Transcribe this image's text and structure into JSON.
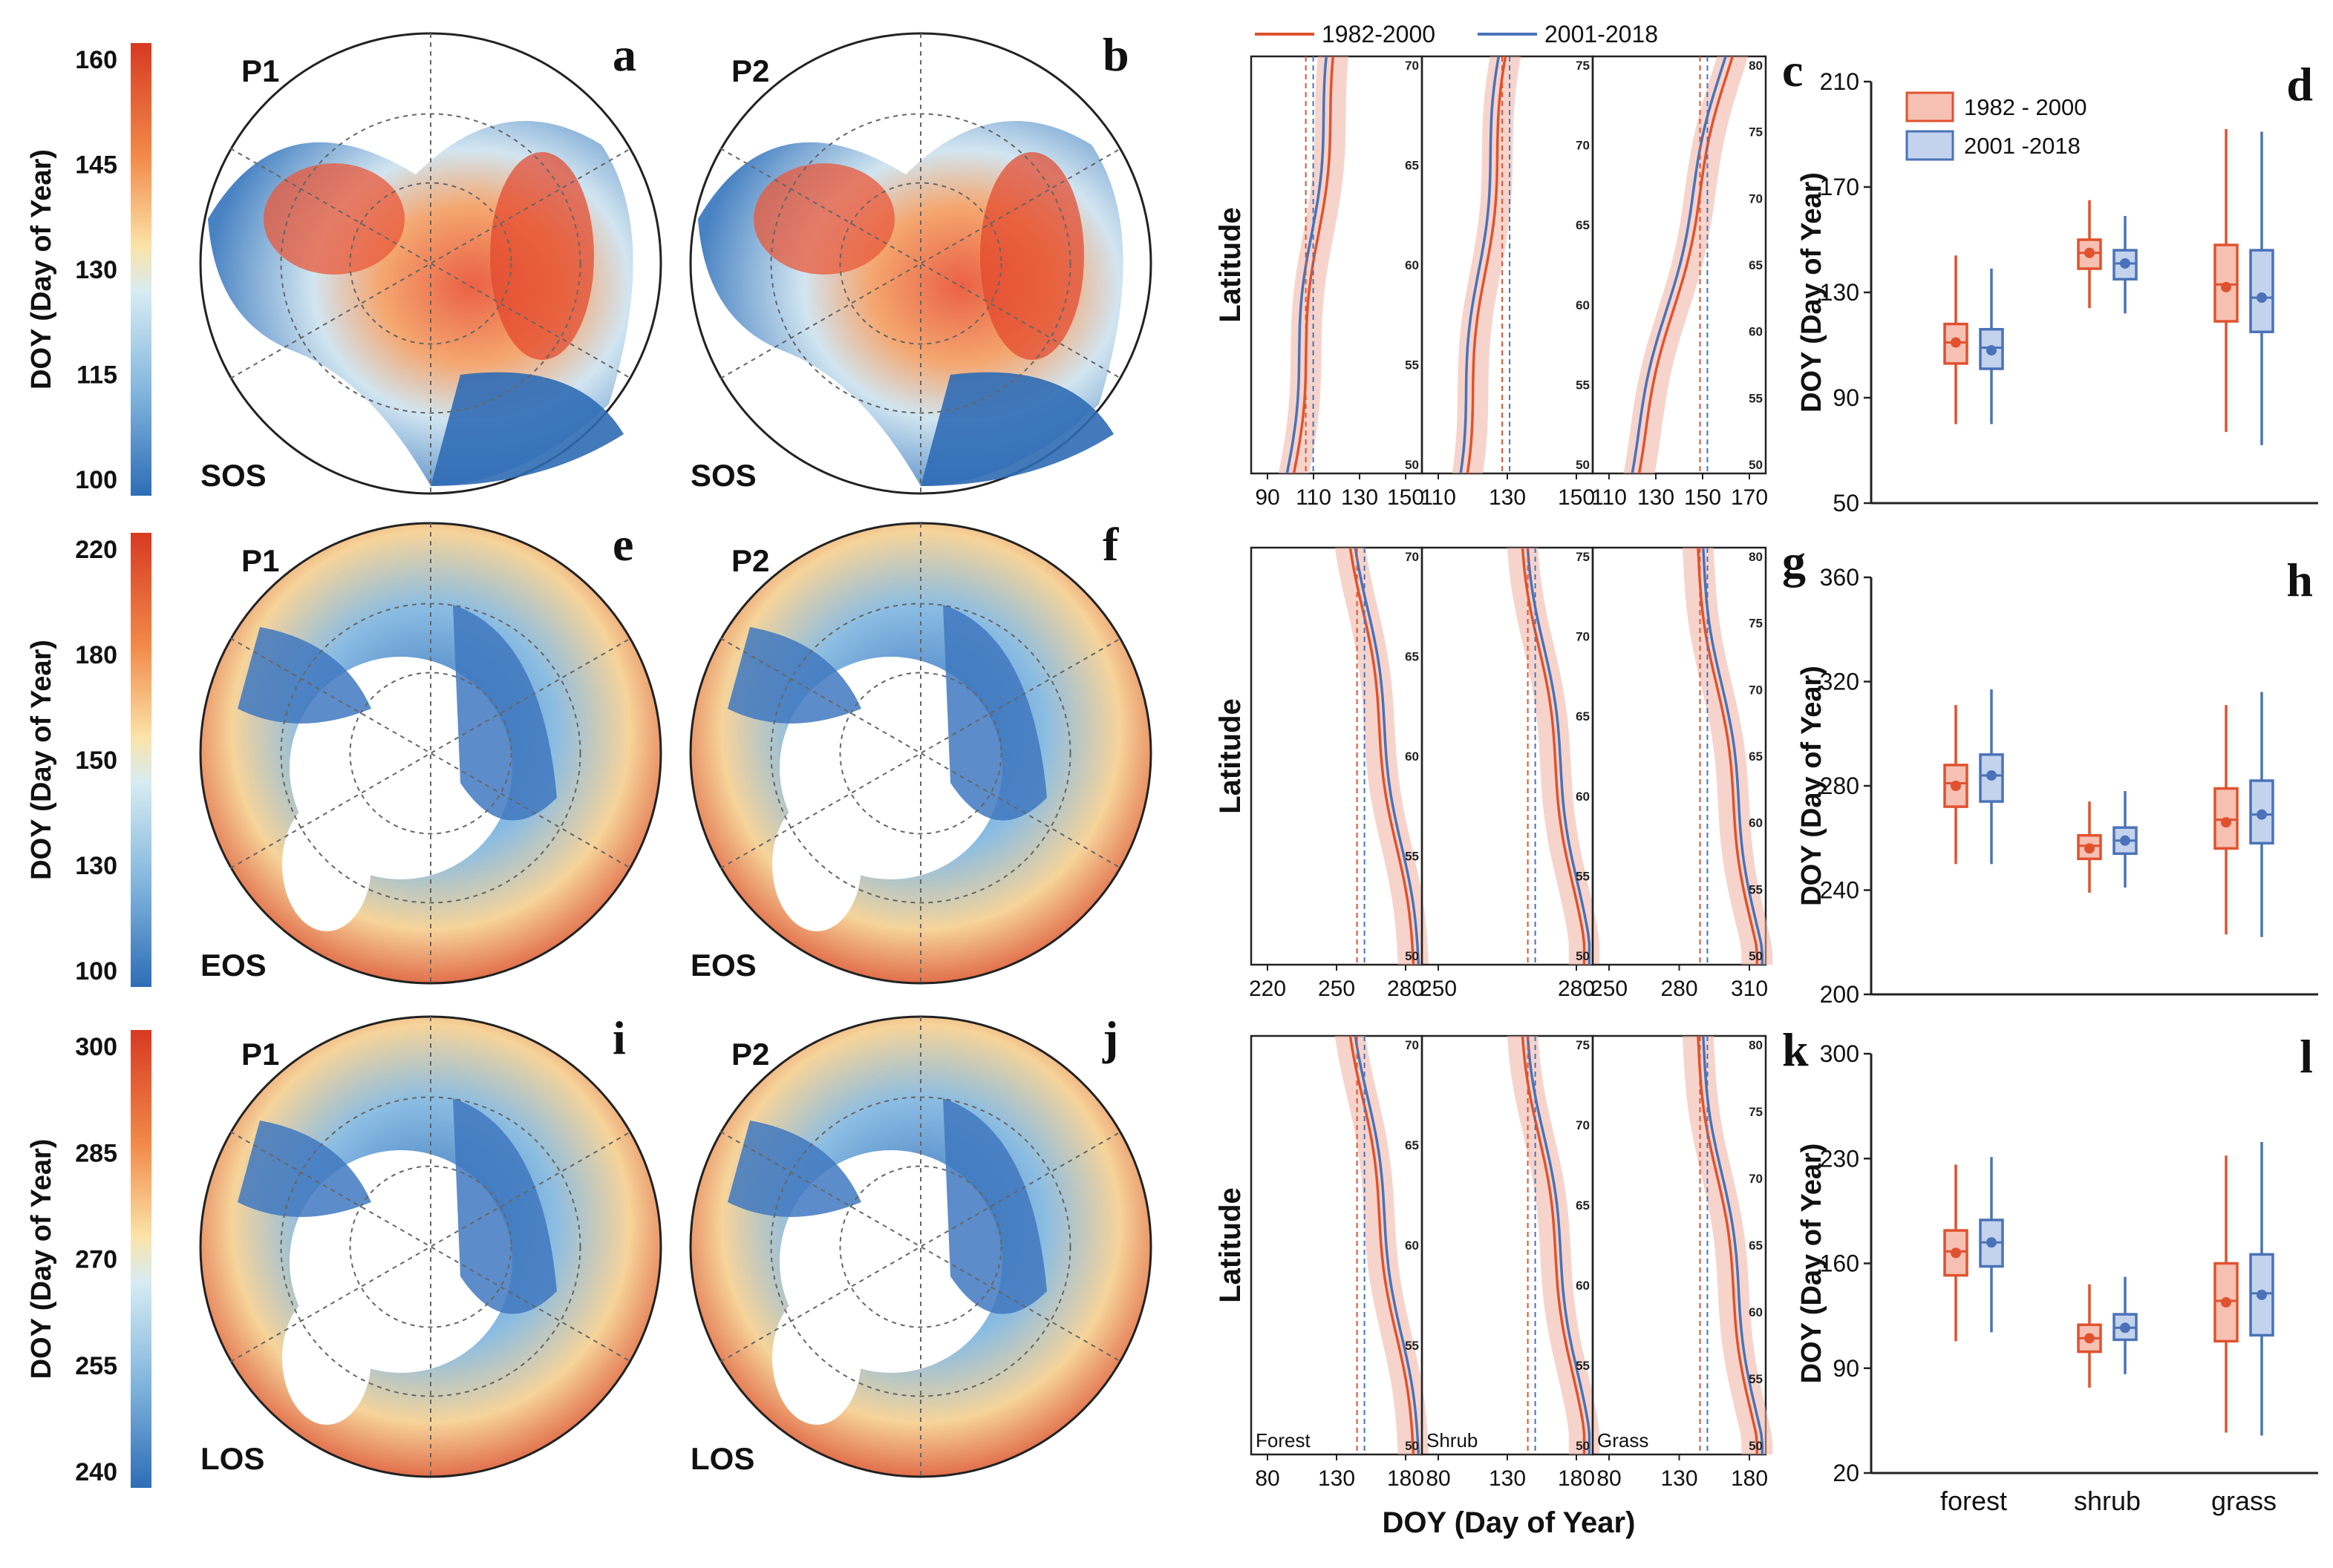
{
  "colorbars": [
    {
      "title": "DOY (Day of Year)",
      "ticks": [
        "160",
        "145",
        "130",
        "115",
        "100"
      ]
    },
    {
      "title": "DOY (Day of Year)",
      "ticks": [
        "220",
        "180",
        "150",
        "130",
        "100"
      ]
    },
    {
      "title": "DOY (Day of Year)",
      "ticks": [
        "300",
        "285",
        "270",
        "255",
        "240"
      ]
    }
  ],
  "maps": [
    {
      "period": "P1",
      "metric": "SOS",
      "letter": "a"
    },
    {
      "period": "P2",
      "metric": "SOS",
      "letter": "b"
    },
    {
      "period": "P1",
      "metric": "EOS",
      "letter": "e"
    },
    {
      "period": "P2",
      "metric": "EOS",
      "letter": "f"
    },
    {
      "period": "P1",
      "metric": "LOS",
      "letter": "i"
    },
    {
      "period": "P2",
      "metric": "LOS",
      "letter": "j"
    }
  ],
  "profile_legend": [
    {
      "label": "1982-2000",
      "color": "#e0522f"
    },
    {
      "label": "2001-2018",
      "color": "#4a72b8"
    }
  ],
  "profile_rows": [
    {
      "letter": "c",
      "ylabel": "Latitude",
      "xticks": [
        [
          "90",
          "110",
          "130",
          "150"
        ],
        [
          "110",
          "130",
          "150"
        ],
        [
          "110",
          "130",
          "150",
          "170"
        ]
      ],
      "latticks": [
        [
          "70",
          "65",
          "60",
          "55",
          "50"
        ],
        [
          "75",
          "70",
          "65",
          "60",
          "55",
          "50"
        ],
        [
          "80",
          "75",
          "70",
          "65",
          "60",
          "55",
          "50"
        ]
      ]
    },
    {
      "letter": "g",
      "ylabel": "Latitude",
      "xticks": [
        [
          "220",
          "250",
          "280"
        ],
        [
          "250",
          "280"
        ],
        [
          "250",
          "280",
          "310"
        ]
      ],
      "latticks": [
        [
          "70",
          "65",
          "60",
          "55",
          "50"
        ],
        [
          "75",
          "70",
          "65",
          "60",
          "55",
          "50"
        ],
        [
          "80",
          "75",
          "70",
          "65",
          "60",
          "55",
          "50"
        ]
      ]
    },
    {
      "letter": "k",
      "ylabel": "Latitude",
      "xticks": [
        [
          "80",
          "130",
          "180"
        ],
        [
          "80",
          "130",
          "180"
        ],
        [
          "80",
          "130",
          "180"
        ]
      ],
      "latticks": [
        [
          "70",
          "65",
          "60",
          "55",
          "50"
        ],
        [
          "75",
          "70",
          "65",
          "60",
          "55",
          "50"
        ],
        [
          "80",
          "75",
          "70",
          "65",
          "60",
          "55",
          "50"
        ]
      ],
      "panel_labels": [
        "Forest",
        "Shrub",
        "Grass"
      ]
    }
  ],
  "profile_xlabel": "DOY (Day of Year)",
  "box_legend": [
    {
      "label": "1982 - 2000",
      "color": "#e0522f",
      "fill": "#f6c0b3"
    },
    {
      "label": "2001 -2018",
      "color": "#4a72b8",
      "fill": "#c3d3ee"
    }
  ],
  "chart_data": [
    {
      "type": "box",
      "letter": "d",
      "ylabel": "DOY (Day of Year)",
      "ylim": [
        50,
        210
      ],
      "yticks": [
        "50",
        "90",
        "130",
        "170",
        "210"
      ],
      "categories": [
        "forest",
        "shrub",
        "grass"
      ],
      "series": [
        {
          "name": "1982 - 2000",
          "boxes": [
            {
              "whislo": 80,
              "q1": 103,
              "med": 111,
              "mean": 111,
              "q3": 118,
              "whishi": 144
            },
            {
              "whislo": 124,
              "q1": 139,
              "med": 145,
              "mean": 145,
              "q3": 150,
              "whishi": 165
            },
            {
              "whislo": 77,
              "q1": 119,
              "med": 133,
              "mean": 132,
              "q3": 148,
              "whishi": 192
            }
          ]
        },
        {
          "name": "2001 -2018",
          "boxes": [
            {
              "whislo": 80,
              "q1": 101,
              "med": 109,
              "mean": 108,
              "q3": 116,
              "whishi": 139
            },
            {
              "whislo": 122,
              "q1": 135,
              "med": 141,
              "mean": 141,
              "q3": 146,
              "whishi": 159
            },
            {
              "whislo": 72,
              "q1": 115,
              "med": 128,
              "mean": 128,
              "q3": 146,
              "whishi": 191
            }
          ]
        }
      ]
    },
    {
      "type": "box",
      "letter": "h",
      "ylabel": "DOY (Day of Year)",
      "ylim": [
        200,
        360
      ],
      "yticks": [
        "200",
        "240",
        "280",
        "320",
        "360"
      ],
      "categories": [
        "forest",
        "shrub",
        "grass"
      ],
      "series": [
        {
          "name": "1982 - 2000",
          "boxes": [
            {
              "whislo": 250,
              "q1": 272,
              "med": 281,
              "mean": 280,
              "q3": 288,
              "whishi": 311
            },
            {
              "whislo": 239,
              "q1": 252,
              "med": 257,
              "mean": 256,
              "q3": 261,
              "whishi": 274
            },
            {
              "whislo": 223,
              "q1": 256,
              "med": 267,
              "mean": 266,
              "q3": 279,
              "whishi": 311
            }
          ]
        },
        {
          "name": "2001 -2018",
          "boxes": [
            {
              "whislo": 250,
              "q1": 274,
              "med": 284,
              "mean": 284,
              "q3": 292,
              "whishi": 317
            },
            {
              "whislo": 241,
              "q1": 254,
              "med": 259,
              "mean": 259,
              "q3": 264,
              "whishi": 278
            },
            {
              "whislo": 222,
              "q1": 258,
              "med": 269,
              "mean": 269,
              "q3": 282,
              "whishi": 316
            }
          ]
        }
      ]
    },
    {
      "type": "box",
      "letter": "l",
      "ylabel": "DOY (Day of Year)",
      "ylim": [
        20,
        300
      ],
      "yticks": [
        "20",
        "90",
        "160",
        "230",
        "300"
      ],
      "categories": [
        "forest",
        "shrub",
        "grass"
      ],
      "series": [
        {
          "name": "1982 - 2000",
          "boxes": [
            {
              "whislo": 108,
              "q1": 152,
              "med": 168,
              "mean": 167,
              "q3": 182,
              "whishi": 226
            },
            {
              "whislo": 77,
              "q1": 101,
              "med": 110,
              "mean": 110,
              "q3": 119,
              "whishi": 146
            },
            {
              "whislo": 47,
              "q1": 108,
              "med": 135,
              "mean": 134,
              "q3": 160,
              "whishi": 232
            }
          ]
        },
        {
          "name": "2001 -2018",
          "boxes": [
            {
              "whislo": 114,
              "q1": 158,
              "med": 174,
              "mean": 174,
              "q3": 189,
              "whishi": 231
            },
            {
              "whislo": 86,
              "q1": 109,
              "med": 117,
              "mean": 117,
              "q3": 126,
              "whishi": 151
            },
            {
              "whislo": 45,
              "q1": 112,
              "med": 140,
              "mean": 139,
              "q3": 166,
              "whishi": 241
            }
          ]
        }
      ]
    }
  ]
}
